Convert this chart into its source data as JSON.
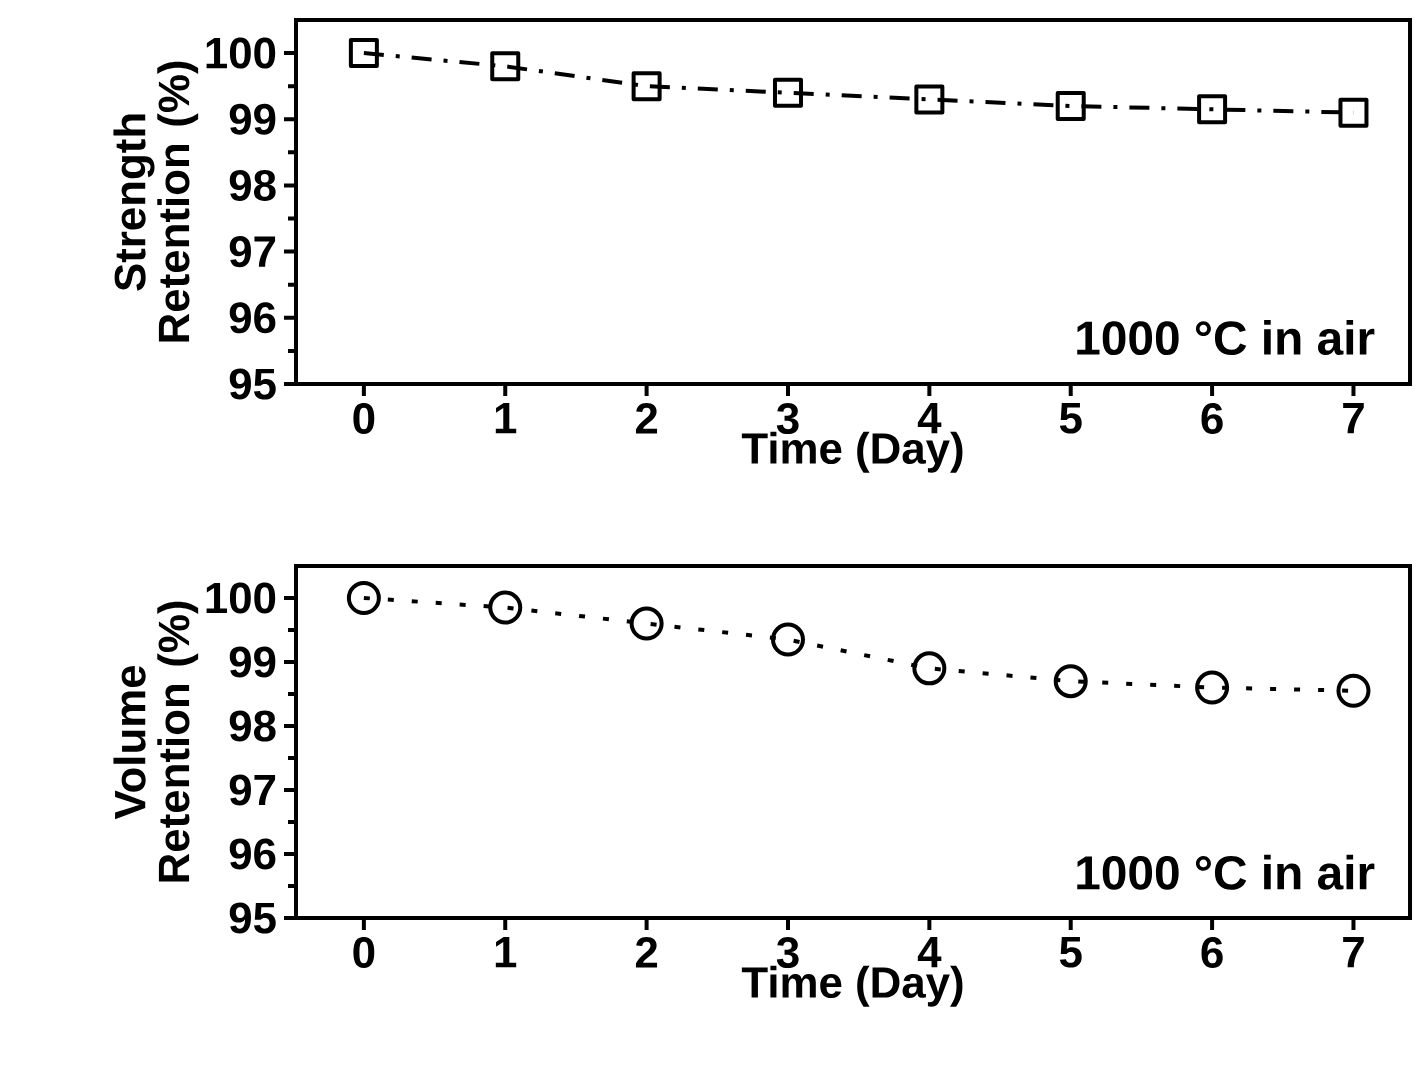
{
  "chart_data": [
    {
      "type": "line",
      "xlabel": "Time (Day)",
      "ylabel": "Strength Retention (%)",
      "x": [
        0,
        1,
        2,
        3,
        4,
        5,
        6,
        7
      ],
      "series": [
        {
          "color": "#000000",
          "values": [
            100.0,
            99.8,
            99.5,
            99.4,
            99.3,
            99.2,
            99.15,
            99.1
          ]
        }
      ],
      "xlim": [
        -0.48,
        7.4
      ],
      "ylim": [
        95,
        100.5
      ],
      "xticks": [
        0,
        1,
        2,
        3,
        4,
        5,
        6,
        7
      ],
      "yticks": [
        95,
        96,
        97,
        98,
        99,
        100
      ],
      "annotations": [
        "1000 °C in air"
      ],
      "marker": "square",
      "line_style": "dashed",
      "grid": false
    },
    {
      "type": "line",
      "xlabel": "Time (Day)",
      "ylabel": "Volume Retention (%)",
      "x": [
        0,
        1,
        2,
        3,
        4,
        5,
        6,
        7
      ],
      "series": [
        {
          "color": "#000000",
          "values": [
            100.0,
            99.85,
            99.6,
            99.35,
            98.9,
            98.7,
            98.6,
            98.55
          ]
        }
      ],
      "xlim": [
        -0.48,
        7.4
      ],
      "ylim": [
        95,
        100.5
      ],
      "xticks": [
        0,
        1,
        2,
        3,
        4,
        5,
        6,
        7
      ],
      "yticks": [
        95,
        96,
        97,
        98,
        99,
        100
      ],
      "annotations": [
        "1000 °C in air"
      ],
      "marker": "circle",
      "line_style": "dotted",
      "grid": false
    }
  ]
}
